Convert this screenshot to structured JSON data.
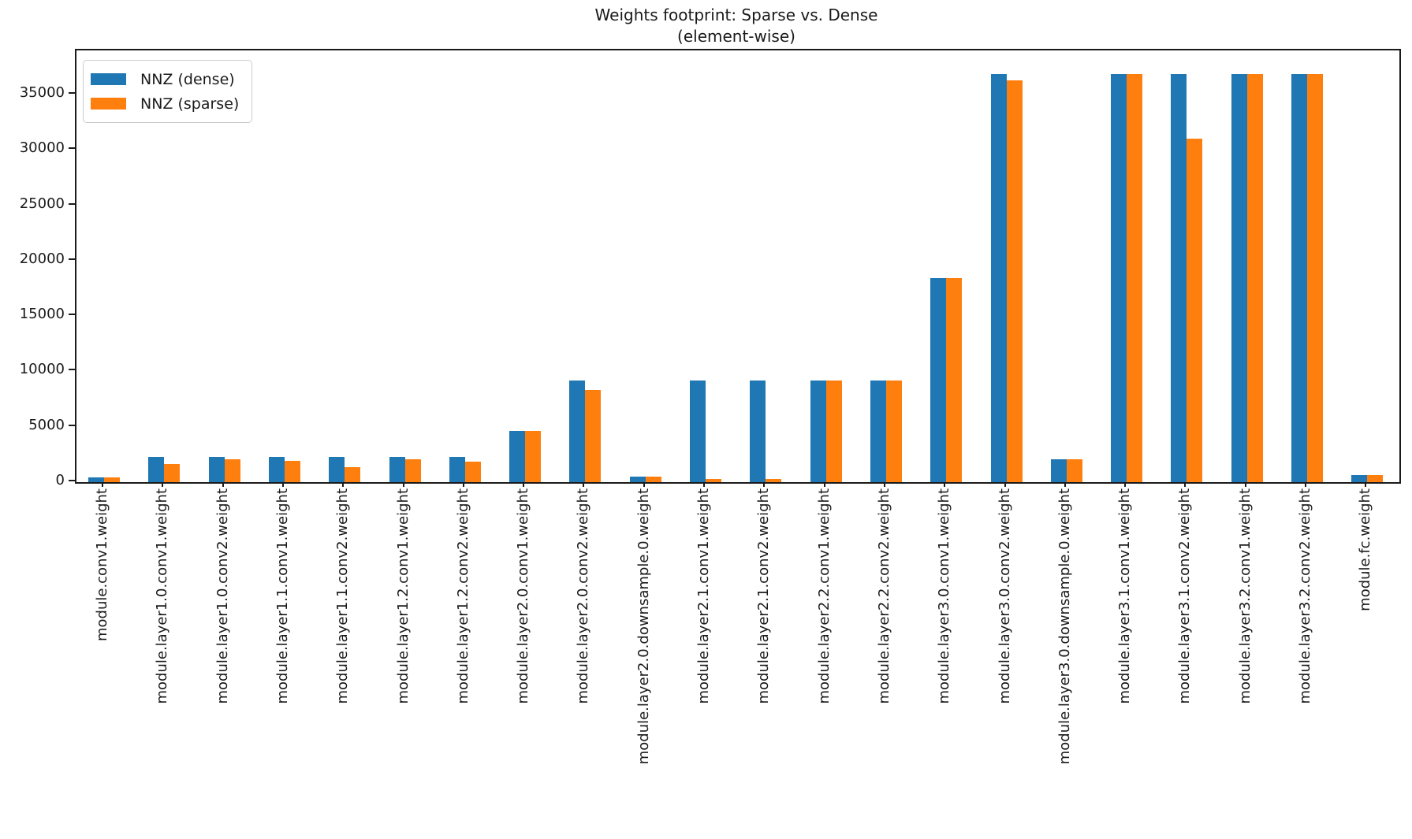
{
  "figure": {
    "title_line1": "Weights footprint: Sparse vs. Dense",
    "title_line2": "(element-wise)"
  },
  "legend": {
    "items": [
      {
        "label": "NNZ (dense)",
        "color": "#1f77b4"
      },
      {
        "label": "NNZ (sparse)",
        "color": "#ff7f0e"
      }
    ]
  },
  "chart_data": {
    "type": "bar",
    "title": "Weights footprint: Sparse vs. Dense (element-wise)",
    "xlabel": "",
    "ylabel": "",
    "grid": false,
    "legend_position": "upper left",
    "x_tick_rotation_deg": 90,
    "ylim": [
      0,
      39000
    ],
    "yticks": [
      0,
      5000,
      10000,
      15000,
      20000,
      25000,
      30000,
      35000
    ],
    "categories": [
      "module.conv1.weight",
      "module.layer1.0.conv1.weight",
      "module.layer1.0.conv2.weight",
      "module.layer1.1.conv1.weight",
      "module.layer1.1.conv2.weight",
      "module.layer1.2.conv1.weight",
      "module.layer1.2.conv2.weight",
      "module.layer2.0.conv1.weight",
      "module.layer2.0.conv2.weight",
      "module.layer2.0.downsample.0.weight",
      "module.layer2.1.conv1.weight",
      "module.layer2.1.conv2.weight",
      "module.layer2.2.conv1.weight",
      "module.layer2.2.conv2.weight",
      "module.layer3.0.conv1.weight",
      "module.layer3.0.conv2.weight",
      "module.layer3.0.downsample.0.weight",
      "module.layer3.1.conv1.weight",
      "module.layer3.1.conv2.weight",
      "module.layer3.2.conv1.weight",
      "module.layer3.2.conv2.weight",
      "module.fc.weight"
    ],
    "series": [
      {
        "name": "NNZ (dense)",
        "color": "#1f77b4",
        "values": [
          432,
          2304,
          2304,
          2304,
          2304,
          2304,
          2304,
          4608,
          9216,
          512,
          9216,
          9216,
          9216,
          9216,
          18432,
          36864,
          2048,
          36864,
          36864,
          36864,
          36864,
          640
        ]
      },
      {
        "name": "NNZ (sparse)",
        "color": "#ff7f0e",
        "values": [
          432,
          1610,
          2040,
          1890,
          1330,
          2100,
          1850,
          4608,
          8330,
          512,
          300,
          300,
          9216,
          9216,
          18432,
          36270,
          2048,
          36864,
          31030,
          36864,
          36864,
          640
        ]
      }
    ]
  }
}
